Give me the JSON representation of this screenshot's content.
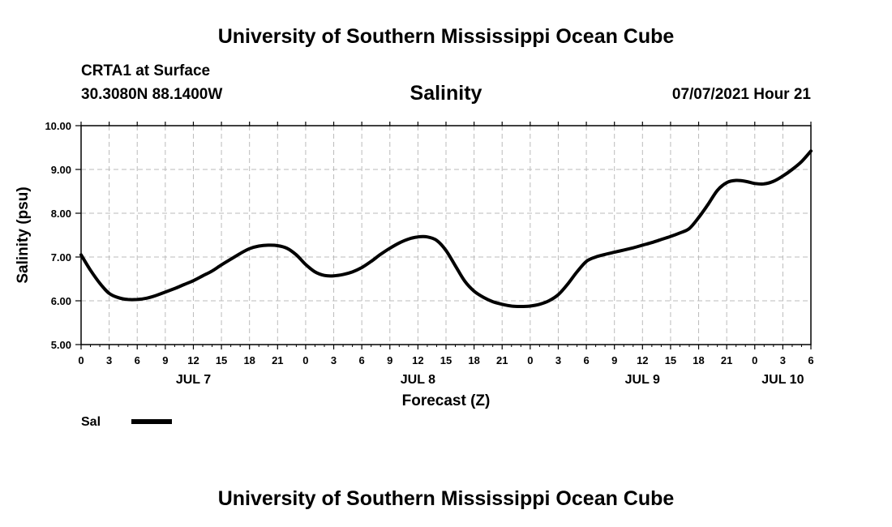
{
  "header": {
    "title": "University of Southern Mississippi Ocean Cube",
    "station": "CRTA1 at Surface",
    "coords": "30.3080N  88.1400W",
    "variable": "Salinity",
    "datetime": "07/07/2021 Hour 21"
  },
  "footer": {
    "title": "University of Southern Mississippi Ocean Cube"
  },
  "legend": {
    "label": "Sal"
  },
  "colors": {
    "line": "#000000",
    "grid": "#bbbbbb"
  },
  "chart_data": {
    "type": "line",
    "title": "Salinity",
    "xlabel": "Forecast (Z)",
    "ylabel": "Salinity (psu)",
    "ylim": [
      5,
      10
    ],
    "xlim": [
      0,
      78
    ],
    "x_unit": "hours from JUL 7 00Z",
    "yticks": [
      "5.00",
      "6.00",
      "7.00",
      "8.00",
      "9.00",
      "10.00"
    ],
    "xticks": [
      {
        "h": 0,
        "label": "0"
      },
      {
        "h": 3,
        "label": "3"
      },
      {
        "h": 6,
        "label": "6"
      },
      {
        "h": 9,
        "label": "9"
      },
      {
        "h": 12,
        "label": "12"
      },
      {
        "h": 15,
        "label": "15"
      },
      {
        "h": 18,
        "label": "18"
      },
      {
        "h": 21,
        "label": "21"
      },
      {
        "h": 24,
        "label": "0"
      },
      {
        "h": 27,
        "label": "3"
      },
      {
        "h": 30,
        "label": "6"
      },
      {
        "h": 33,
        "label": "9"
      },
      {
        "h": 36,
        "label": "12"
      },
      {
        "h": 39,
        "label": "15"
      },
      {
        "h": 42,
        "label": "18"
      },
      {
        "h": 45,
        "label": "21"
      },
      {
        "h": 48,
        "label": "0"
      },
      {
        "h": 51,
        "label": "3"
      },
      {
        "h": 54,
        "label": "6"
      },
      {
        "h": 57,
        "label": "9"
      },
      {
        "h": 60,
        "label": "12"
      },
      {
        "h": 63,
        "label": "15"
      },
      {
        "h": 66,
        "label": "18"
      },
      {
        "h": 69,
        "label": "21"
      },
      {
        "h": 72,
        "label": "0"
      },
      {
        "h": 75,
        "label": "3"
      },
      {
        "h": 78,
        "label": "6"
      }
    ],
    "days": [
      {
        "h": 12,
        "label": "JUL 7"
      },
      {
        "h": 36,
        "label": "JUL 8"
      },
      {
        "h": 60,
        "label": "JUL 9"
      },
      {
        "h": 75,
        "label": "JUL 10"
      }
    ],
    "series": [
      {
        "name": "Sal",
        "x": [
          0,
          1,
          2,
          3,
          4,
          5,
          6,
          7,
          8,
          9,
          10,
          11,
          12,
          13,
          14,
          15,
          16,
          17,
          18,
          19,
          20,
          21,
          22,
          23,
          24,
          25,
          26,
          27,
          28,
          29,
          30,
          31,
          32,
          33,
          34,
          35,
          36,
          37,
          38,
          39,
          40,
          41,
          42,
          43,
          44,
          45,
          46,
          47,
          48,
          49,
          50,
          51,
          52,
          53,
          54,
          55,
          56,
          57,
          58,
          59,
          60,
          61,
          62,
          63,
          64,
          65,
          66,
          67,
          68,
          69,
          70,
          71,
          72,
          73,
          74,
          75,
          76,
          77,
          78
        ],
        "values": [
          7.05,
          6.7,
          6.4,
          6.17,
          6.07,
          6.03,
          6.03,
          6.06,
          6.12,
          6.2,
          6.28,
          6.37,
          6.46,
          6.57,
          6.68,
          6.82,
          6.95,
          7.08,
          7.19,
          7.25,
          7.27,
          7.26,
          7.2,
          7.05,
          6.83,
          6.66,
          6.58,
          6.57,
          6.6,
          6.66,
          6.76,
          6.9,
          7.06,
          7.2,
          7.32,
          7.41,
          7.46,
          7.46,
          7.38,
          7.15,
          6.8,
          6.45,
          6.22,
          6.08,
          5.98,
          5.92,
          5.88,
          5.87,
          5.88,
          5.92,
          6.0,
          6.14,
          6.38,
          6.66,
          6.9,
          7.0,
          7.06,
          7.11,
          7.16,
          7.21,
          7.27,
          7.33,
          7.4,
          7.47,
          7.55,
          7.65,
          7.9,
          8.2,
          8.52,
          8.7,
          8.75,
          8.73,
          8.68,
          8.67,
          8.73,
          8.85,
          9.0,
          9.18,
          9.42
        ]
      }
    ]
  }
}
